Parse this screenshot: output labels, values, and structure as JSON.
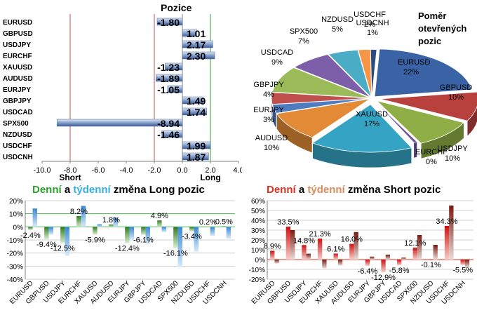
{
  "pos_title": "Pozice",
  "pie_title": [
    "Poměr",
    "otevřených",
    "pozic"
  ],
  "daily_short_title": {
    "a": "Denní",
    "b": " a ",
    "c": "týdenní",
    "d": " změna Short pozic"
  },
  "daily_long_title": {
    "a": "Denní",
    "b": " a ",
    "c": "týdenní",
    "d": " změna Long pozic"
  },
  "colors": {
    "green": "#2ca02c",
    "cyan": "#35aee6",
    "red": "#e03020",
    "orange": "#d98b5a",
    "pos_bar": "#4f6fa8"
  },
  "chart_data": [
    {
      "id": "positions",
      "type": "bar",
      "orientation": "horizontal",
      "title": "Pozice",
      "categories": [
        "EURUSD",
        "GBPUSD",
        "USDJPY",
        "EURCHF",
        "XAUUSD",
        "AUDUSD",
        "EURJPY",
        "GBPJPY",
        "USDCAD",
        "SPX500",
        "NZDUSD",
        "USDCHF",
        "USDCNH"
      ],
      "values": [
        -1.8,
        1.01,
        2.17,
        2.3,
        -1.23,
        -1.89,
        -1.05,
        1.49,
        1.74,
        -8.94,
        -1.46,
        1.99,
        1.87
      ],
      "value_labels": [
        "-1.80",
        "1.01",
        "2.17",
        "2.30",
        "-1.23",
        "-1.89",
        "-1.05",
        "1.49",
        "1.74",
        "-8.94",
        "-1.46",
        "1.99",
        "1.87"
      ],
      "xlim": [
        -10,
        4
      ],
      "xticks": [
        "-10.0",
        "-8.0",
        "-6.0",
        "-4.0",
        "-2.0",
        "0.0",
        "2.0",
        "4.0"
      ],
      "annotations": {
        "short": "Short",
        "long": "Long"
      },
      "reference_lines": [
        {
          "x": -8,
          "color": "#c0504d"
        },
        {
          "x": -2,
          "color": "#c0504d"
        },
        {
          "x": 2,
          "color": "#2ca02c"
        }
      ]
    },
    {
      "id": "ratio",
      "type": "pie",
      "title": "Poměr otevřených pozic",
      "slices": [
        {
          "label": "EURUSD",
          "pct": "22%",
          "value": 22,
          "color": "#3a63a6"
        },
        {
          "label": "GBPUSD",
          "pct": "10%",
          "value": 10,
          "color": "#b8403d"
        },
        {
          "label": "USDJPY",
          "pct": "10%",
          "value": 10,
          "color": "#8fae46"
        },
        {
          "label": "EURCHF",
          "pct": "0%",
          "value": 0.6,
          "color": "#6f54a0"
        },
        {
          "label": "XAUUSD",
          "pct": "17%",
          "value": 17,
          "color": "#35a3c4"
        },
        {
          "label": "AUDUSD",
          "pct": "10%",
          "value": 10,
          "color": "#e28a35"
        },
        {
          "label": "EURJPY",
          "pct": "3%",
          "value": 3,
          "color": "#4f7bbf"
        },
        {
          "label": "GBPJPY",
          "pct": "4%",
          "value": 4,
          "color": "#c0504d"
        },
        {
          "label": "USDCAD",
          "pct": "9%",
          "value": 9,
          "color": "#9bbb59"
        },
        {
          "label": "SPX500",
          "pct": "7%",
          "value": 7,
          "color": "#7d5ea8"
        },
        {
          "label": "NZDUSD",
          "pct": "5%",
          "value": 5,
          "color": "#4bacc6"
        },
        {
          "label": "USDCHF",
          "pct": "2%",
          "value": 2,
          "color": "#f79646"
        },
        {
          "label": "USDCNH",
          "pct": "1%",
          "value": 1,
          "color": "#2c4d7f"
        }
      ]
    },
    {
      "id": "long_change",
      "type": "bar",
      "title": "Denní a týdenní změna Long pozic",
      "categories": [
        "EURUSD",
        "GBPUSD",
        "USDJPY",
        "EURCHF",
        "XAUUSD",
        "AUDUSD",
        "EURJPY",
        "GBPJPY",
        "USDCAD",
        "SPX500",
        "NZDUSD",
        "USDCHF",
        "USDCNH"
      ],
      "series": [
        {
          "name": "Denní",
          "values": [
            -2.4,
            -9.4,
            -12.5,
            8.2,
            -5.9,
            1.8,
            -12.4,
            -6.1,
            4.9,
            -16.1,
            -3.4,
            0.2,
            0.5
          ]
        },
        {
          "name": "týdenní",
          "values": [
            14,
            -6,
            -22,
            16,
            2,
            7,
            -10,
            -13,
            -4,
            -31,
            -19,
            -7,
            -9
          ]
        }
      ],
      "data_labels": [
        "-2.4%",
        "-9.4%",
        "-12.5%",
        "8.2%",
        "-5.9%",
        "1.8%",
        "-12.4%",
        "-6.1%",
        "4.9%",
        "-16.1%",
        "-3.4%",
        "0.2%",
        "0.5%"
      ],
      "ylim": [
        -40,
        20
      ],
      "yticks": [
        "20%",
        "10%",
        "0%",
        "-10%",
        "-20%",
        "-30%",
        "-40%"
      ]
    },
    {
      "id": "short_change",
      "type": "bar",
      "title": "Denní a týdenní změna Short pozic",
      "categories": [
        "EURUSD",
        "GBPUSD",
        "USDJPY",
        "EURCHF",
        "XAUUSD",
        "AUDUSD",
        "EURJPY",
        "GBPJPY",
        "USDCAD",
        "SPX500",
        "NZDUSD",
        "USDCHF",
        "USDCNH"
      ],
      "series": [
        {
          "name": "Denní",
          "values": [
            8.9,
            33.5,
            14.8,
            21.3,
            6.1,
            16.0,
            -6.4,
            -12.9,
            -5.8,
            12.1,
            -0.1,
            34.3,
            -5.5
          ]
        },
        {
          "name": "týdenní",
          "values": [
            -4,
            30,
            6,
            -9,
            -6,
            28,
            3,
            5,
            2,
            25,
            15,
            55,
            -8
          ]
        }
      ],
      "data_labels": [
        "8.9%",
        "33.5%",
        "14.8%",
        "21.3%",
        "6.1%",
        "16.0%",
        "-6.4%",
        "-12.9%",
        "-5.8%",
        "12.1%",
        "-0.1%",
        "34.3%",
        "-5.5%"
      ],
      "ylim": [
        -20,
        60
      ],
      "yticks": [
        "60%",
        "50%",
        "40%",
        "30%",
        "20%",
        "10%",
        "0%",
        "-10%",
        "-20%"
      ]
    }
  ]
}
